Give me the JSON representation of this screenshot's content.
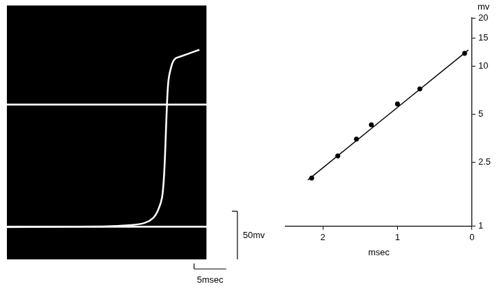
{
  "chart_data": [
    {
      "type": "line",
      "tick_labels": false,
      "grid": false,
      "xlim": [
        0,
        31
      ],
      "ylim": [
        0,
        264
      ],
      "series": [
        {
          "type": "line",
          "color": "#ffffff",
          "line_style": "solid",
          "x": [
            0,
            31
          ],
          "values": [
            34,
            34
          ]
        },
        {
          "type": "line",
          "color": "#ffffff",
          "line_style": "solid",
          "x": [
            0,
            31
          ],
          "values": [
            161,
            161
          ]
        },
        {
          "type": "line",
          "color": "#ffffff",
          "line_style": "solid",
          "x": [
            0,
            15.0,
            19.3,
            21.4,
            22.7,
            23.5,
            24.1,
            24.4,
            24.6,
            24.8,
            25.1,
            25.7,
            26.2,
            27.0,
            29.9
          ],
          "values": [
            33.6,
            34.3,
            35.7,
            37.9,
            42.9,
            51.4,
            64.3,
            85.7,
            114,
            150,
            186,
            204,
            209,
            211,
            218
          ]
        }
      ],
      "scale_bars": [
        {
          "axis": "y",
          "value": 50,
          "label": "50mv"
        },
        {
          "axis": "x",
          "value": 5,
          "label": "5msec"
        }
      ]
    },
    {
      "type": "scatter",
      "log": "y",
      "grid": false,
      "x_label": "msec",
      "y_label": "mv",
      "xlim": [
        2.5,
        0
      ],
      "ylim": [
        1,
        20
      ],
      "xticks": [
        2,
        1,
        0
      ],
      "yticks": [
        1,
        2.5,
        5,
        10,
        15,
        20
      ],
      "series": [
        {
          "type": "scatter",
          "marker": "circle",
          "color": "#000000",
          "x": [
            2.15,
            1.8,
            1.55,
            1.35,
            1.0,
            0.7,
            0.1
          ],
          "values": [
            2.0,
            2.75,
            3.5,
            4.3,
            5.8,
            7.2,
            12.0
          ]
        },
        {
          "type": "line",
          "line_style": "solid",
          "color": "#000000",
          "x": [
            2.2,
            0.05
          ],
          "values": [
            1.95,
            12.6
          ]
        }
      ]
    }
  ]
}
